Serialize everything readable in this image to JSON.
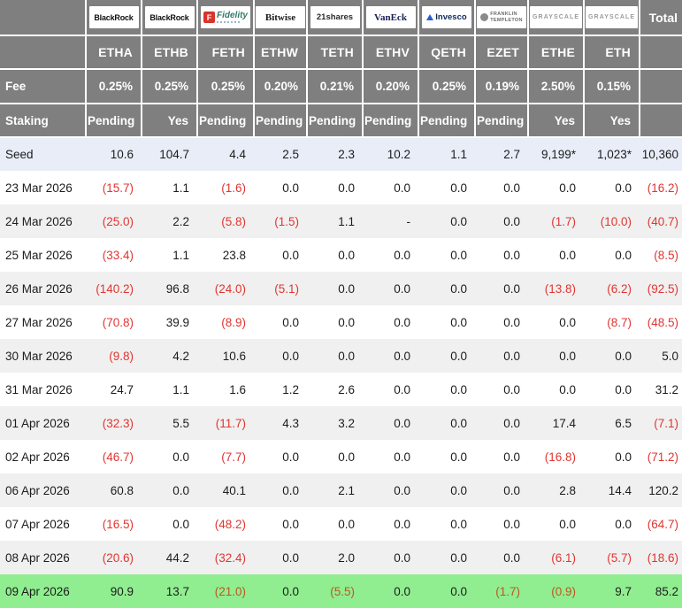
{
  "header": {
    "providers": [
      {
        "brand": "blackrock",
        "label": "BlackRock"
      },
      {
        "brand": "blackrock",
        "label": "BlackRock"
      },
      {
        "brand": "fidelity",
        "label": "Fidelity",
        "icon_letter": "F"
      },
      {
        "brand": "bitwise",
        "label": "Bitwise"
      },
      {
        "brand": "shares21",
        "label": "21shares"
      },
      {
        "brand": "vaneck",
        "label": "VanEck"
      },
      {
        "brand": "invesco",
        "label": "Invesco"
      },
      {
        "brand": "franklin",
        "label": "FRANKLIN TEMPLETON"
      },
      {
        "brand": "grayscale",
        "label": "GRAYSCALE"
      },
      {
        "brand": "grayscale",
        "label": "GRAYSCALE"
      }
    ],
    "total_label": "Total",
    "tickers": [
      "ETHA",
      "ETHB",
      "FETH",
      "ETHW",
      "TETH",
      "ETHV",
      "QETH",
      "EZET",
      "ETHE",
      "ETH"
    ],
    "fee_label": "Fee",
    "fees": [
      "0.25%",
      "0.25%",
      "0.25%",
      "0.20%",
      "0.21%",
      "0.20%",
      "0.25%",
      "0.19%",
      "2.50%",
      "0.15%"
    ],
    "staking_label": "Staking",
    "staking": [
      "Pending",
      "Yes",
      "Pending",
      "Pending",
      "Pending",
      "Pending",
      "Pending",
      "Pending",
      "Yes",
      "Yes"
    ]
  },
  "table": {
    "rows": [
      {
        "kind": "seed",
        "label": "Seed",
        "values": [
          "10.6",
          "104.7",
          "4.4",
          "2.5",
          "2.3",
          "10.2",
          "1.1",
          "2.7",
          "9,199*",
          "1,023*"
        ],
        "total": "10,360"
      },
      {
        "label": "23 Mar 2026",
        "values": [
          "(15.7)",
          "1.1",
          "(1.6)",
          "0.0",
          "0.0",
          "0.0",
          "0.0",
          "0.0",
          "0.0",
          "0.0"
        ],
        "total": "(16.2)"
      },
      {
        "label": "24 Mar 2026",
        "values": [
          "(25.0)",
          "2.2",
          "(5.8)",
          "(1.5)",
          "1.1",
          "-",
          "0.0",
          "0.0",
          "(1.7)",
          "(10.0)"
        ],
        "total": "(40.7)"
      },
      {
        "label": "25 Mar 2026",
        "values": [
          "(33.4)",
          "1.1",
          "23.8",
          "0.0",
          "0.0",
          "0.0",
          "0.0",
          "0.0",
          "0.0",
          "0.0"
        ],
        "total": "(8.5)"
      },
      {
        "label": "26 Mar 2026",
        "values": [
          "(140.2)",
          "96.8",
          "(24.0)",
          "(5.1)",
          "0.0",
          "0.0",
          "0.0",
          "0.0",
          "(13.8)",
          "(6.2)"
        ],
        "total": "(92.5)"
      },
      {
        "label": "27 Mar 2026",
        "values": [
          "(70.8)",
          "39.9",
          "(8.9)",
          "0.0",
          "0.0",
          "0.0",
          "0.0",
          "0.0",
          "0.0",
          "(8.7)"
        ],
        "total": "(48.5)"
      },
      {
        "label": "30 Mar 2026",
        "values": [
          "(9.8)",
          "4.2",
          "10.6",
          "0.0",
          "0.0",
          "0.0",
          "0.0",
          "0.0",
          "0.0",
          "0.0"
        ],
        "total": "5.0"
      },
      {
        "label": "31 Mar 2026",
        "values": [
          "24.7",
          "1.1",
          "1.6",
          "1.2",
          "2.6",
          "0.0",
          "0.0",
          "0.0",
          "0.0",
          "0.0"
        ],
        "total": "31.2"
      },
      {
        "label": "01 Apr 2026",
        "values": [
          "(32.3)",
          "5.5",
          "(11.7)",
          "4.3",
          "3.2",
          "0.0",
          "0.0",
          "0.0",
          "17.4",
          "6.5"
        ],
        "total": "(7.1)"
      },
      {
        "label": "02 Apr 2026",
        "values": [
          "(46.7)",
          "0.0",
          "(7.7)",
          "0.0",
          "0.0",
          "0.0",
          "0.0",
          "0.0",
          "(16.8)",
          "0.0"
        ],
        "total": "(71.2)"
      },
      {
        "label": "06 Apr 2026",
        "values": [
          "60.8",
          "0.0",
          "40.1",
          "0.0",
          "2.1",
          "0.0",
          "0.0",
          "0.0",
          "2.8",
          "14.4"
        ],
        "total": "120.2"
      },
      {
        "label": "07 Apr 2026",
        "values": [
          "(16.5)",
          "0.0",
          "(48.2)",
          "0.0",
          "0.0",
          "0.0",
          "0.0",
          "0.0",
          "0.0",
          "0.0"
        ],
        "total": "(64.7)"
      },
      {
        "label": "08 Apr 2026",
        "values": [
          "(20.6)",
          "44.2",
          "(32.4)",
          "0.0",
          "2.0",
          "0.0",
          "0.0",
          "0.0",
          "(6.1)",
          "(5.7)"
        ],
        "total": "(18.6)"
      },
      {
        "kind": "highlight",
        "label": "09 Apr 2026",
        "values": [
          "90.9",
          "13.7",
          "(21.0)",
          "0.0",
          "(5.5)",
          "0.0",
          "0.0",
          "(1.7)",
          "(0.9)",
          "9.7"
        ],
        "total": "85.2"
      }
    ]
  },
  "colors": {
    "header_bg": "#7f7f7f",
    "seed_row_bg": "#e8edf8",
    "stripe_row_bg": "#f0f0f0",
    "highlight_row_bg": "#90ee90",
    "negative_text": "#e03531",
    "negative_text_on_highlight": "#bf5520",
    "fidelity_red": "#d9342b",
    "invesco_blue": "#2a5bd7"
  }
}
